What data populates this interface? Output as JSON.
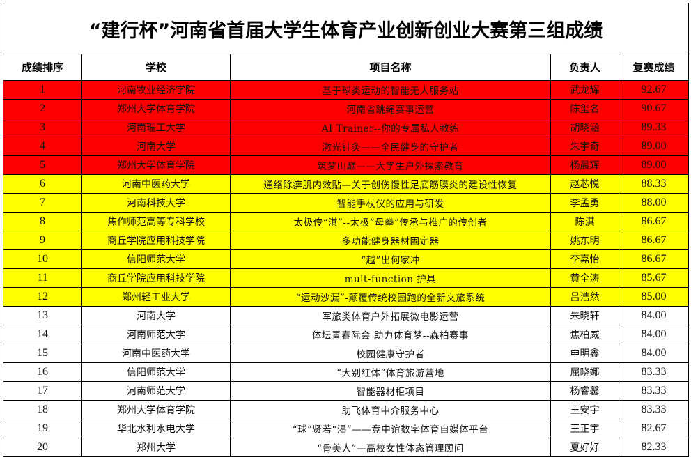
{
  "title": "“建行杯”河南省首届大学生体育产业创新创业大赛第三组成绩",
  "colors": {
    "tier1": "#ff0000",
    "tier2": "#ffff00",
    "tier3": "#ffffff"
  },
  "headers": [
    "成绩排序",
    "学校",
    "项目名称",
    "负责人",
    "复赛成绩"
  ],
  "rows": [
    {
      "rank": "1",
      "school": "河南牧业经济学院",
      "project": "基于球类运动的智能无人服务站",
      "leader": "武龙辉",
      "score": "92.67",
      "tier": "tier1"
    },
    {
      "rank": "2",
      "school": "郑州大学体育学院",
      "project": "河南省跳绳赛事运营",
      "leader": "陈玺名",
      "score": "90.67",
      "tier": "tier1"
    },
    {
      "rank": "3",
      "school": "河南理工大学",
      "project": "AI Trainer--你的专属私人教练",
      "leader": "胡晓涵",
      "score": "89.33",
      "tier": "tier1"
    },
    {
      "rank": "4",
      "school": "河南大学",
      "project": "激光针灸——全民健身的守护者",
      "leader": "朱宇奇",
      "score": "89.00",
      "tier": "tier1"
    },
    {
      "rank": "5",
      "school": "郑州大学体育学院",
      "project": "筑梦山巅——大学生户外探索教育",
      "leader": "杨晨辉",
      "score": "89.00",
      "tier": "tier1"
    },
    {
      "rank": "6",
      "school": "河南中医药大学",
      "project": "通络除痹肌内效贴—关于创伤慢性足底筋膜炎的建设性恢复",
      "leader": "赵芯悦",
      "score": "88.33",
      "tier": "tier2"
    },
    {
      "rank": "7",
      "school": "河南科技大学",
      "project": "智能手杖仪的应用与研发",
      "leader": "李孟勇",
      "score": "88.00",
      "tier": "tier2"
    },
    {
      "rank": "8",
      "school": "焦作师范高等专科学校",
      "project": "太极传“淇”--太极“母拳”传承与推广的传创者",
      "leader": "陈淇",
      "score": "86.67",
      "tier": "tier2"
    },
    {
      "rank": "9",
      "school": "商丘学院应用科技学院",
      "project": "多功能健身器材固定器",
      "leader": "姚东明",
      "score": "86.67",
      "tier": "tier2"
    },
    {
      "rank": "10",
      "school": "信阳师范大学",
      "project": "“越”出何家冲",
      "leader": "李嘉怡",
      "score": "86.67",
      "tier": "tier2"
    },
    {
      "rank": "11",
      "school": "商丘学院应用科技学院",
      "project": "mult-function 护具",
      "leader": "黄全涛",
      "score": "85.67",
      "tier": "tier2"
    },
    {
      "rank": "12",
      "school": "郑州轻工业大学",
      "project": "“运动沙漏”-颠覆传统校园跑的全新文旅系统",
      "leader": "吕浩然",
      "score": "85.00",
      "tier": "tier2"
    },
    {
      "rank": "13",
      "school": "河南大学",
      "project": "军旅类体育户外拓展微电影运营",
      "leader": "朱晓轩",
      "score": "84.00",
      "tier": "tier3"
    },
    {
      "rank": "14",
      "school": "河南师范大学",
      "project": "体坛青春际会 助力体育梦--森柏赛事",
      "leader": "焦柏威",
      "score": "84.00",
      "tier": "tier3"
    },
    {
      "rank": "15",
      "school": "河南中医药大学",
      "project": "校园健康守护者",
      "leader": "申明鑫",
      "score": "84.00",
      "tier": "tier3"
    },
    {
      "rank": "16",
      "school": "信阳师范大学",
      "project": "“大别红体”体育旅游营地",
      "leader": "屈晓娜",
      "score": "83.33",
      "tier": "tier3"
    },
    {
      "rank": "17",
      "school": "河南师范大学",
      "project": "智能器材柜项目",
      "leader": "杨睿馨",
      "score": "83.33",
      "tier": "tier3"
    },
    {
      "rank": "18",
      "school": "郑州大学体育学院",
      "project": "助飞体育中介服务中心",
      "leader": "王安宇",
      "score": "83.33",
      "tier": "tier3"
    },
    {
      "rank": "19",
      "school": "华北水利水电大学",
      "project": "“球”贤若“渴”——竞中谊数字体育自媒体平台",
      "leader": "王正宇",
      "score": "82.67",
      "tier": "tier3"
    },
    {
      "rank": "20",
      "school": "郑州大学",
      "project": "“骨美人”—高校女性体态管理顾问",
      "leader": "夏好好",
      "score": "82.33",
      "tier": "tier3"
    }
  ]
}
